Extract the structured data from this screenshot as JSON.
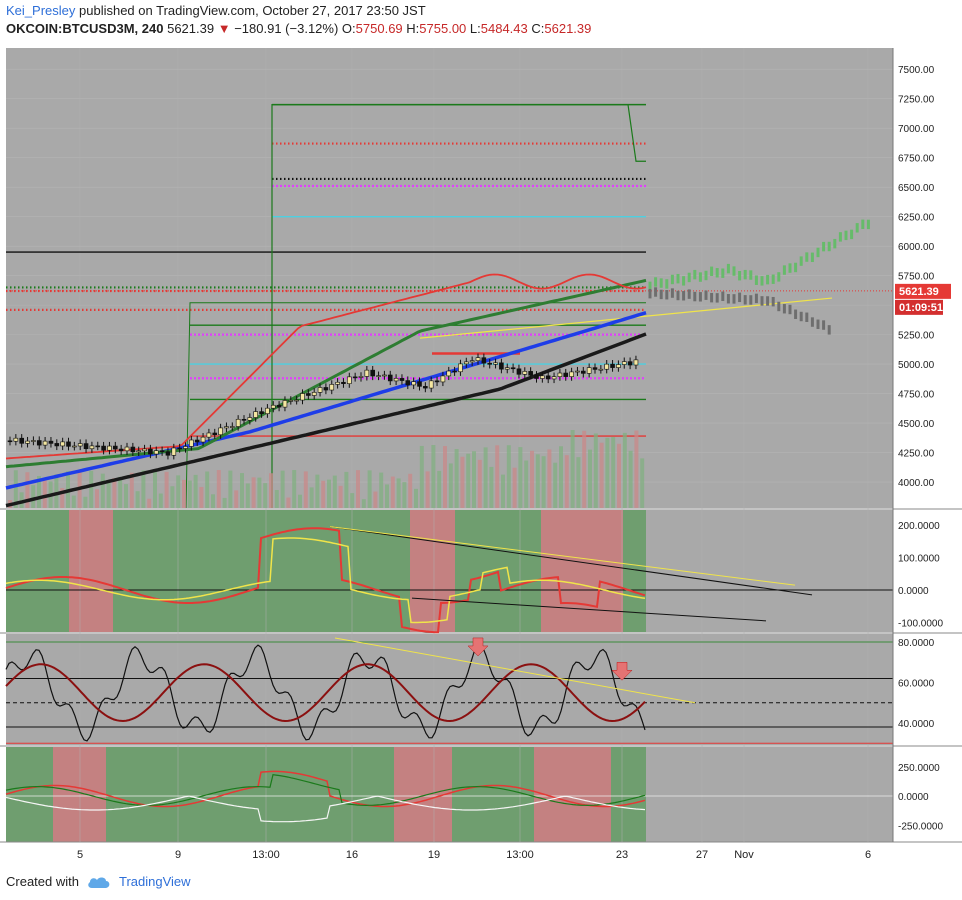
{
  "header": {
    "author": "Kei_Presley",
    "published": "published on TradingView.com, October 27, 2017 23:50 JST",
    "symbol": "OKCOIN:BTCUSD3M, 240",
    "last": "5621.39",
    "change": "−180.91 (−3.12%)",
    "o_label": "O:",
    "o_value": "5750.69",
    "h_label": "H:",
    "h_value": "5755.00",
    "l_label": "L:",
    "l_value": "5484.43",
    "c_label": "C:",
    "c_value": "5621.39"
  },
  "price_tag": "5621.39",
  "timer_tag": "01:09:51",
  "footer": {
    "created_with": "Created with",
    "brand": "TradingView"
  },
  "colors": {
    "panel_bg": "#a9a9a9",
    "green_zone": "#6f9e6f",
    "red_zone": "#c48181",
    "accent_red": "#e53935",
    "projection_green": "#66bb6a",
    "projection_grey": "#6e6e6e",
    "ma_blue": "#1e3de8",
    "ma_green": "#2e7d32",
    "ma_black": "#1a1a1a"
  },
  "chart_data": {
    "type": "candlestick",
    "x_ticks": [
      "5",
      "9",
      "13:00",
      "16",
      "19",
      "13:00",
      "23",
      "27",
      "Nov",
      "6"
    ],
    "price_ticks": [
      "7500.00",
      "7250.00",
      "7000.00",
      "6750.00",
      "6500.00",
      "6250.00",
      "6000.00",
      "5750.00",
      "5500.00",
      "5250.00",
      "5000.00",
      "4750.00",
      "4500.00",
      "4250.00",
      "4000.00"
    ],
    "price_range": [
      3780,
      7680
    ],
    "horizontal_levels": [
      {
        "price": 7200,
        "style": "green-solid"
      },
      {
        "price": 6870,
        "style": "red-dotted"
      },
      {
        "price": 6570,
        "style": "black-dotted"
      },
      {
        "price": 6510,
        "style": "magenta-dotted"
      },
      {
        "price": 6250,
        "style": "cyan-solid"
      },
      {
        "price": 5950,
        "style": "black-solid"
      },
      {
        "price": 5650,
        "style": "green-dotted"
      },
      {
        "price": 5620,
        "style": "red-dotted"
      },
      {
        "price": 5460,
        "style": "red-dotted"
      },
      {
        "price": 5330,
        "style": "green-solid"
      },
      {
        "price": 5250,
        "style": "magenta-dotted"
      },
      {
        "price": 5000,
        "style": "cyan-solid"
      },
      {
        "price": 4880,
        "style": "magenta-dotted"
      },
      {
        "price": 4700,
        "style": "green-solid"
      },
      {
        "price": 4390,
        "style": "red-solid"
      }
    ],
    "osc1_ticks": [
      "200.0000",
      "100.0000",
      "0.0000",
      "-100.0000"
    ],
    "osc2_ticks": [
      "80.0000",
      "60.0000",
      "40.0000"
    ],
    "osc3_ticks": [
      "250.0000",
      "0.0000",
      "-250.0000"
    ]
  }
}
